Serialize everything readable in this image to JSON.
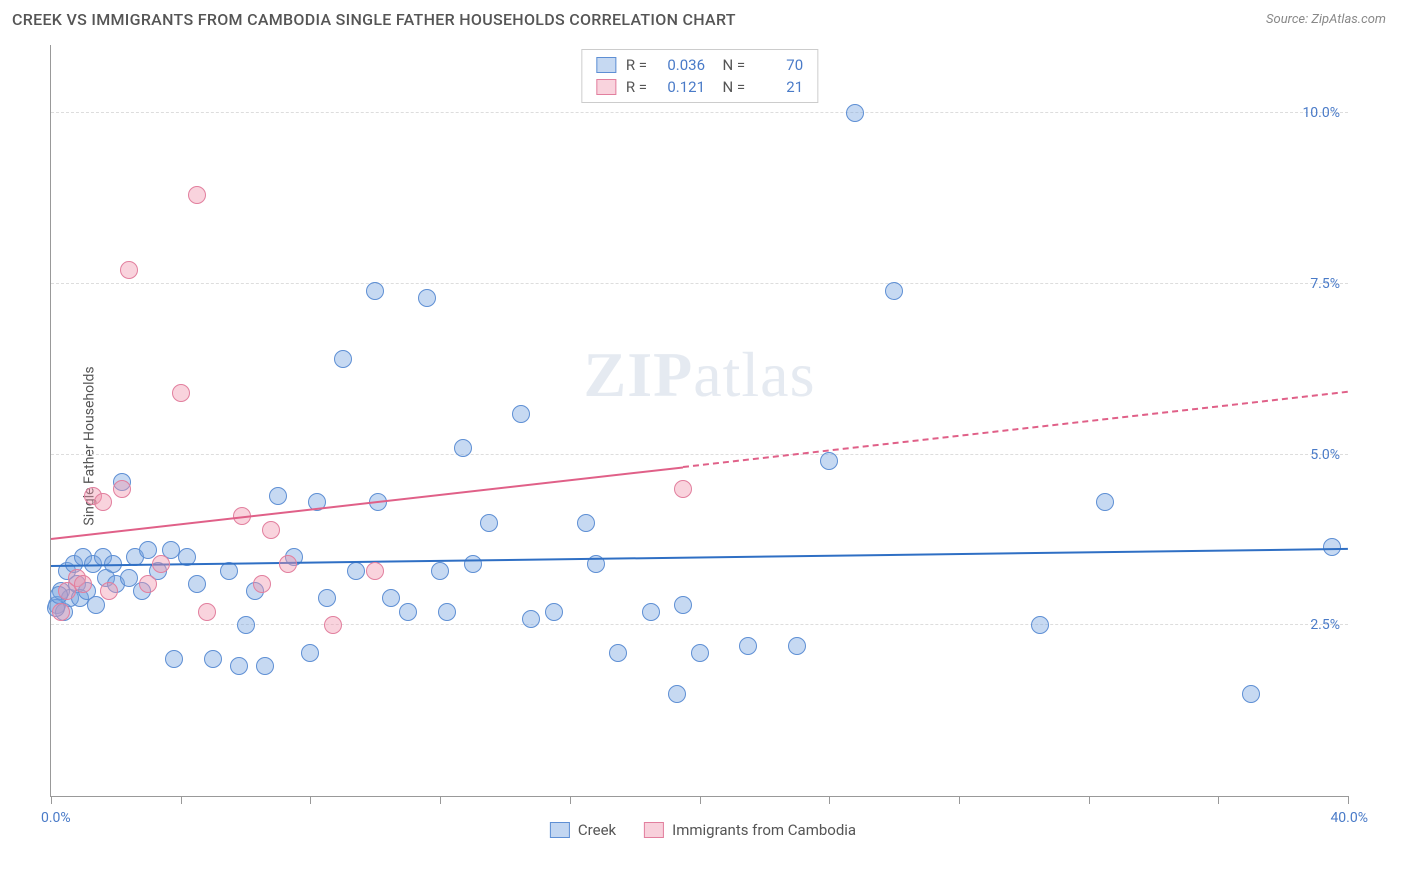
{
  "header": {
    "title": "CREEK VS IMMIGRANTS FROM CAMBODIA SINGLE FATHER HOUSEHOLDS CORRELATION CHART",
    "source": "Source: ZipAtlas.com"
  },
  "watermark_zip": "ZIP",
  "watermark_atlas": "atlas",
  "chart": {
    "type": "scatter",
    "yaxis_label": "Single Father Households",
    "xlim": [
      0,
      40
    ],
    "ylim": [
      0,
      11
    ],
    "xlabel_min": "0.0%",
    "xlabel_max": "40.0%",
    "xtick_positions": [
      0,
      4,
      8,
      12,
      16,
      20,
      24,
      28,
      32,
      36,
      40
    ],
    "yticks": [
      {
        "v": 2.5,
        "label": "2.5%"
      },
      {
        "v": 5.0,
        "label": "5.0%"
      },
      {
        "v": 7.5,
        "label": "7.5%"
      },
      {
        "v": 10.0,
        "label": "10.0%"
      }
    ],
    "background_color": "#ffffff",
    "grid_color": "#dddddd",
    "series": [
      {
        "name": "Creek",
        "fill": "rgba(120,165,225,0.42)",
        "stroke": "#5e8fd4",
        "marker_radius": 9,
        "r_value": "0.036",
        "n_value": "70",
        "trend": {
          "y_at_xmin": 3.35,
          "y_at_xmax": 3.6,
          "x_solid_end": 40,
          "color": "#2f6fc4"
        },
        "points": [
          [
            0.2,
            2.8
          ],
          [
            0.3,
            3.0
          ],
          [
            0.4,
            2.7
          ],
          [
            0.5,
            3.3
          ],
          [
            0.6,
            2.9
          ],
          [
            0.7,
            3.4
          ],
          [
            0.8,
            3.1
          ],
          [
            0.9,
            2.9
          ],
          [
            1.0,
            3.5
          ],
          [
            1.1,
            3.0
          ],
          [
            1.3,
            3.4
          ],
          [
            1.4,
            2.8
          ],
          [
            1.6,
            3.5
          ],
          [
            1.7,
            3.2
          ],
          [
            1.9,
            3.4
          ],
          [
            2.0,
            3.1
          ],
          [
            2.2,
            4.6
          ],
          [
            2.4,
            3.2
          ],
          [
            2.6,
            3.5
          ],
          [
            2.8,
            3.0
          ],
          [
            3.0,
            3.6
          ],
          [
            3.3,
            3.3
          ],
          [
            3.7,
            3.6
          ],
          [
            3.8,
            2.0
          ],
          [
            4.2,
            3.5
          ],
          [
            4.5,
            3.1
          ],
          [
            5.0,
            2.0
          ],
          [
            5.5,
            3.3
          ],
          [
            5.8,
            1.9
          ],
          [
            6.0,
            2.5
          ],
          [
            6.3,
            3.0
          ],
          [
            6.6,
            1.9
          ],
          [
            7.0,
            4.4
          ],
          [
            7.5,
            3.5
          ],
          [
            8.0,
            2.1
          ],
          [
            8.2,
            4.3
          ],
          [
            8.5,
            2.9
          ],
          [
            9.0,
            6.4
          ],
          [
            9.4,
            3.3
          ],
          [
            10.0,
            7.4
          ],
          [
            10.1,
            4.3
          ],
          [
            10.5,
            2.9
          ],
          [
            11.0,
            2.7
          ],
          [
            11.6,
            7.3
          ],
          [
            12.0,
            3.3
          ],
          [
            12.2,
            2.7
          ],
          [
            12.7,
            5.1
          ],
          [
            13.0,
            3.4
          ],
          [
            13.5,
            4.0
          ],
          [
            14.5,
            5.6
          ],
          [
            14.8,
            2.6
          ],
          [
            15.5,
            2.7
          ],
          [
            16.5,
            4.0
          ],
          [
            16.8,
            3.4
          ],
          [
            17.5,
            2.1
          ],
          [
            18.5,
            2.7
          ],
          [
            19.3,
            1.5
          ],
          [
            19.5,
            2.8
          ],
          [
            20.0,
            2.1
          ],
          [
            21.5,
            2.2
          ],
          [
            23.0,
            2.2
          ],
          [
            24.0,
            4.9
          ],
          [
            24.8,
            10.0
          ],
          [
            26.0,
            7.4
          ],
          [
            30.5,
            2.5
          ],
          [
            32.5,
            4.3
          ],
          [
            37.0,
            1.5
          ],
          [
            39.5,
            3.65
          ],
          [
            0.15,
            2.75
          ],
          [
            0.25,
            2.95
          ]
        ]
      },
      {
        "name": "Immigrants from Cambodia",
        "fill": "rgba(240,150,175,0.42)",
        "stroke": "#e27f9e",
        "marker_radius": 9,
        "r_value": "0.121",
        "n_value": "21",
        "trend": {
          "y_at_xmin": 3.75,
          "y_at_xmax": 5.9,
          "x_solid_end": 19.5,
          "color": "#e06088"
        },
        "points": [
          [
            0.3,
            2.7
          ],
          [
            0.5,
            3.0
          ],
          [
            0.8,
            3.2
          ],
          [
            1.0,
            3.1
          ],
          [
            1.3,
            4.4
          ],
          [
            1.6,
            4.3
          ],
          [
            1.8,
            3.0
          ],
          [
            2.2,
            4.5
          ],
          [
            2.4,
            7.7
          ],
          [
            3.0,
            3.1
          ],
          [
            3.4,
            3.4
          ],
          [
            4.0,
            5.9
          ],
          [
            4.5,
            8.8
          ],
          [
            4.8,
            2.7
          ],
          [
            5.9,
            4.1
          ],
          [
            6.5,
            3.1
          ],
          [
            6.8,
            3.9
          ],
          [
            7.3,
            3.4
          ],
          [
            8.7,
            2.5
          ],
          [
            10.0,
            3.3
          ],
          [
            19.5,
            4.5
          ]
        ]
      }
    ]
  },
  "bottom_legend": [
    {
      "label": "Creek",
      "fill": "rgba(120,165,225,0.45)",
      "stroke": "#5e8fd4"
    },
    {
      "label": "Immigrants from Cambodia",
      "fill": "rgba(240,150,175,0.45)",
      "stroke": "#e27f9e"
    }
  ]
}
